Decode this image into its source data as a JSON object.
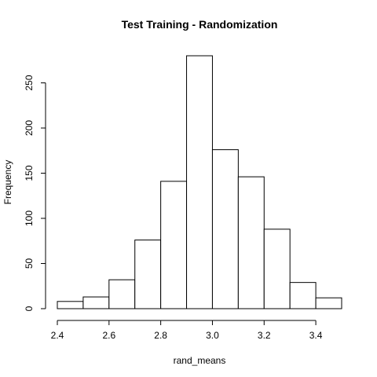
{
  "chart_data": {
    "type": "bar",
    "title": "Test Training - Randomization",
    "xlabel": "rand_means",
    "ylabel": "Frequency",
    "bins": [
      {
        "x0": 2.4,
        "x1": 2.5,
        "count": 8
      },
      {
        "x0": 2.5,
        "x1": 2.6,
        "count": 13
      },
      {
        "x0": 2.6,
        "x1": 2.7,
        "count": 32
      },
      {
        "x0": 2.7,
        "x1": 2.8,
        "count": 76
      },
      {
        "x0": 2.8,
        "x1": 2.9,
        "count": 141
      },
      {
        "x0": 2.9,
        "x1": 3.0,
        "count": 280
      },
      {
        "x0": 3.0,
        "x1": 3.1,
        "count": 176
      },
      {
        "x0": 3.1,
        "x1": 3.2,
        "count": 146
      },
      {
        "x0": 3.2,
        "x1": 3.3,
        "count": 88
      },
      {
        "x0": 3.3,
        "x1": 3.4,
        "count": 29
      },
      {
        "x0": 3.4,
        "x1": 3.5,
        "count": 12
      }
    ],
    "xlim": [
      2.4,
      3.5
    ],
    "ylim": [
      0,
      280
    ],
    "x_ticks": [
      "2.4",
      "2.6",
      "2.8",
      "3.0",
      "3.2",
      "3.4"
    ],
    "y_ticks": [
      "0",
      "50",
      "100",
      "150",
      "200",
      "250"
    ],
    "grid": false,
    "bar_fill": "#ffffff",
    "bar_stroke": "#000000"
  }
}
